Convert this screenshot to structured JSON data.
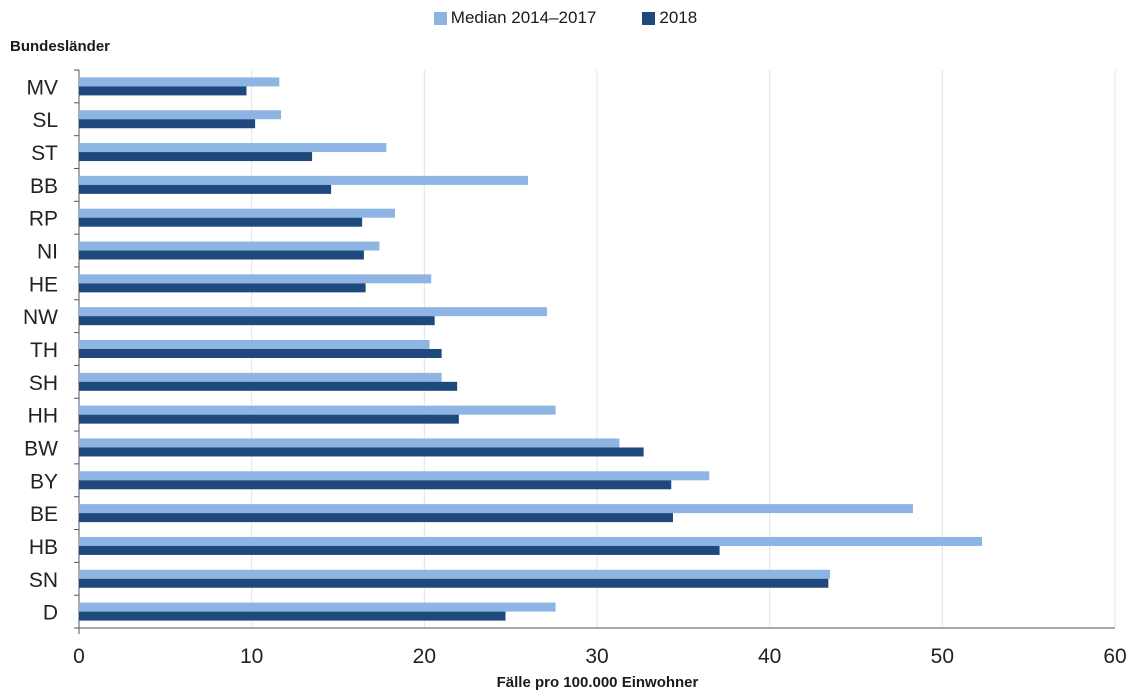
{
  "chart_data": {
    "type": "bar",
    "orientation": "horizontal",
    "categories": [
      "MV",
      "SL",
      "ST",
      "BB",
      "RP",
      "NI",
      "HE",
      "NW",
      "TH",
      "SH",
      "HH",
      "BW",
      "BY",
      "BE",
      "HB",
      "SN",
      "D"
    ],
    "series": [
      {
        "name": "Median 2014–2017",
        "color": "#8db4e2",
        "values": [
          11.6,
          11.7,
          17.8,
          26.0,
          18.3,
          17.4,
          20.4,
          27.1,
          20.3,
          21.0,
          27.6,
          31.3,
          36.5,
          48.3,
          52.3,
          43.5,
          27.6
        ]
      },
      {
        "name": "2018",
        "color": "#1f497d",
        "values": [
          9.7,
          10.2,
          13.5,
          14.6,
          16.4,
          16.5,
          16.6,
          20.6,
          21.0,
          21.9,
          22.0,
          32.7,
          34.3,
          34.4,
          37.1,
          43.4,
          24.7
        ]
      }
    ],
    "ylabel": "Bundesländer",
    "xlabel": "Fälle pro 100.000 Einwohner",
    "xlim": [
      0,
      60
    ],
    "xticks": [
      "0",
      "10",
      "20",
      "30",
      "40",
      "50",
      "60"
    ],
    "grid": true,
    "legend_position": "top-center"
  }
}
